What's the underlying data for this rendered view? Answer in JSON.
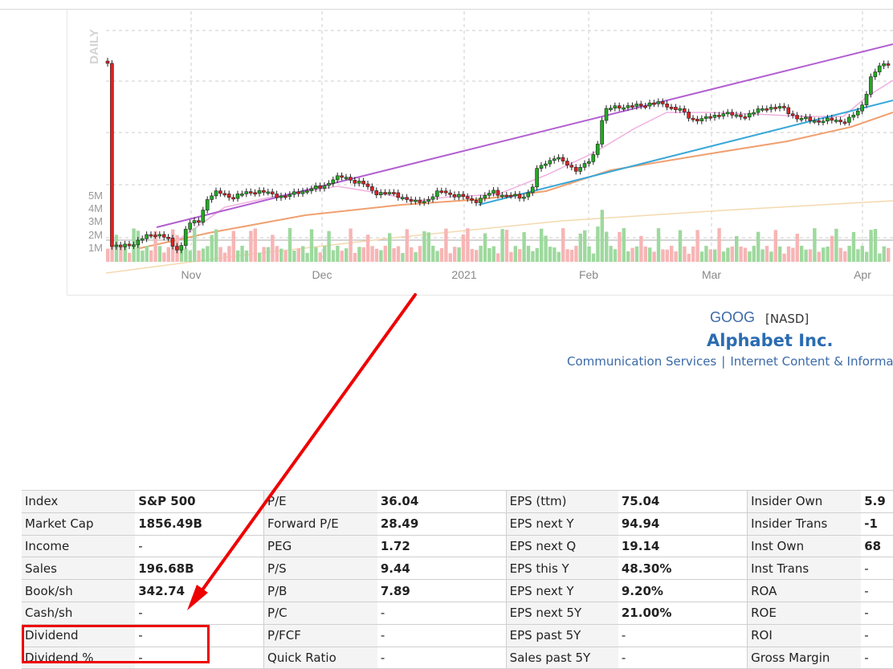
{
  "chart": {
    "period_label": "DAILY",
    "volume_ticks": [
      "5M",
      "4M",
      "3M",
      "2M",
      "1M"
    ],
    "x_ticks": [
      "Nov",
      "Dec",
      "2021",
      "Feb",
      "Mar",
      "Apr"
    ],
    "colors": {
      "up": "#22aa22",
      "down": "#dd2222",
      "vol_up": "#9ed99e",
      "vol_down": "#f7b5b5",
      "channel": "#b25fd0",
      "trend": "#3aa8d8",
      "ma50": "#f0a070",
      "ma20": "#f0b0e0",
      "ma200": "#f5d9b0"
    }
  },
  "header": {
    "ticker": "GOOG",
    "exchange": "[NASD]",
    "company": "Alphabet Inc.",
    "sector": "Communication Services",
    "industry": "Internet Content & Informa"
  },
  "table": {
    "rows": [
      [
        [
          "Index",
          "S&P 500"
        ],
        [
          "P/E",
          "36.04"
        ],
        [
          "EPS (ttm)",
          "75.04"
        ],
        [
          "Insider Own",
          "5.9"
        ]
      ],
      [
        [
          "Market Cap",
          "1856.49B"
        ],
        [
          "Forward P/E",
          "28.49"
        ],
        [
          "EPS next Y",
          "94.94"
        ],
        [
          "Insider Trans",
          "-1"
        ]
      ],
      [
        [
          "Income",
          "-"
        ],
        [
          "PEG",
          "1.72"
        ],
        [
          "EPS next Q",
          "19.14"
        ],
        [
          "Inst Own",
          "68"
        ]
      ],
      [
        [
          "Sales",
          "196.68B"
        ],
        [
          "P/S",
          "9.44"
        ],
        [
          "EPS this Y",
          "48.30%"
        ],
        [
          "Inst Trans",
          "-"
        ]
      ],
      [
        [
          "Book/sh",
          "342.74"
        ],
        [
          "P/B",
          "7.89"
        ],
        [
          "EPS next Y",
          "9.20%"
        ],
        [
          "ROA",
          "-"
        ]
      ],
      [
        [
          "Cash/sh",
          "-"
        ],
        [
          "P/C",
          "-"
        ],
        [
          "EPS next 5Y",
          "21.00%"
        ],
        [
          "ROE",
          "-"
        ]
      ],
      [
        [
          "Dividend",
          "-"
        ],
        [
          "P/FCF",
          "-"
        ],
        [
          "EPS past 5Y",
          "-"
        ],
        [
          "ROI",
          "-"
        ]
      ],
      [
        [
          "Dividend %",
          "-"
        ],
        [
          "Quick Ratio",
          "-"
        ],
        [
          "Sales past 5Y",
          "-"
        ],
        [
          "Gross Margin",
          "-"
        ]
      ]
    ],
    "highlight": {
      "green": "48.30%",
      "red": "7.89"
    }
  },
  "annotation": {
    "color": "#ee0000"
  }
}
